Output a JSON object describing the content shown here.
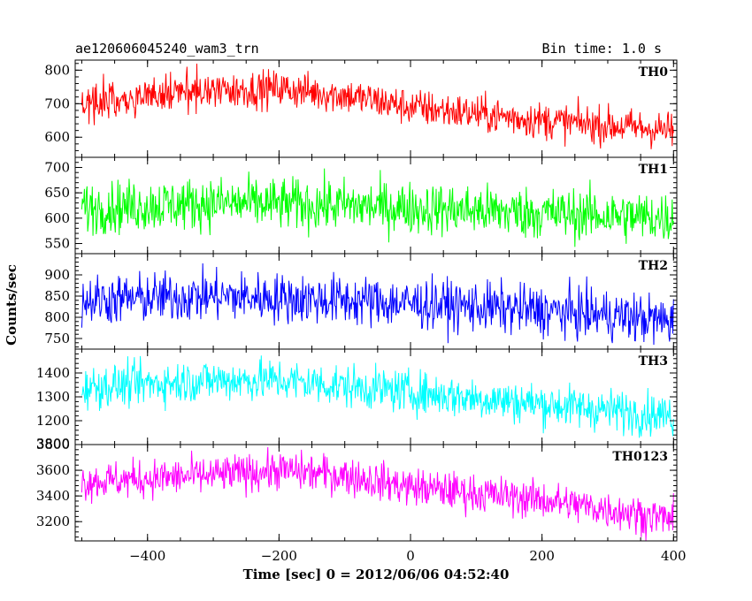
{
  "header": {
    "title": "ae120606045240_wam3_trn",
    "bin_time": "Bin time: 1.0 s"
  },
  "chart_data": {
    "type": "line",
    "xlabel": "Time [sec] 0 = 2012/06/06 04:52:40",
    "ylabel": "Counts/sec",
    "xlim": [
      -510,
      405
    ],
    "x_ticks": [
      -400,
      -200,
      0,
      200,
      400
    ],
    "x_tick_labels": [
      "−400",
      "−200",
      "0",
      "200",
      "400"
    ],
    "x_start": -500,
    "x_end": 400,
    "x_step": 1,
    "panels": [
      {
        "name": "TH0",
        "color": "#ff0000",
        "ylim": [
          540,
          830
        ],
        "ticks": [
          600,
          700,
          800
        ],
        "tick_labels": [
          "600",
          "700",
          "800"
        ],
        "trend": [
          [
            -500,
            705
          ],
          [
            -300,
            740
          ],
          [
            -200,
            745
          ],
          [
            -100,
            725
          ],
          [
            0,
            690
          ],
          [
            200,
            650
          ],
          [
            400,
            620
          ]
        ],
        "noise": 28
      },
      {
        "name": "TH1",
        "color": "#00ff00",
        "ylim": [
          530,
          720
        ],
        "ticks": [
          550,
          600,
          650,
          700
        ],
        "tick_labels": [
          "550",
          "600",
          "650",
          "700"
        ],
        "trend": [
          [
            -500,
            620
          ],
          [
            -300,
            630
          ],
          [
            -100,
            625
          ],
          [
            100,
            615
          ],
          [
            300,
            605
          ],
          [
            400,
            600
          ]
        ],
        "noise": 26
      },
      {
        "name": "TH2",
        "color": "#0000ff",
        "ylim": [
          725,
          950
        ],
        "ticks": [
          750,
          800,
          850,
          900
        ],
        "tick_labels": [
          "750",
          "800",
          "850",
          "900"
        ],
        "trend": [
          [
            -500,
            840
          ],
          [
            -300,
            850
          ],
          [
            -100,
            840
          ],
          [
            100,
            825
          ],
          [
            300,
            805
          ],
          [
            400,
            790
          ]
        ],
        "noise": 30
      },
      {
        "name": "TH3",
        "color": "#00ffff",
        "ylim": [
          1100,
          1500
        ],
        "ticks": [
          1200,
          1300,
          1400
        ],
        "tick_labels": [
          "1200",
          "1300",
          "1400"
        ],
        "extra_bottom_label": "3800",
        "trend": [
          [
            -500,
            1340
          ],
          [
            -300,
            1370
          ],
          [
            -200,
            1370
          ],
          [
            0,
            1320
          ],
          [
            200,
            1270
          ],
          [
            400,
            1220
          ]
        ],
        "noise": 45
      },
      {
        "name": "TH0123",
        "color": "#ff00ff",
        "ylim": [
          3050,
          3800
        ],
        "ticks": [
          3200,
          3400,
          3600,
          3800
        ],
        "tick_labels": [
          "3200",
          "3400",
          "3600",
          "3800"
        ],
        "trend": [
          [
            -500,
            3510
          ],
          [
            -300,
            3560
          ],
          [
            -200,
            3600
          ],
          [
            -100,
            3560
          ],
          [
            0,
            3470
          ],
          [
            200,
            3370
          ],
          [
            400,
            3220
          ]
        ],
        "noise": 75
      }
    ]
  }
}
